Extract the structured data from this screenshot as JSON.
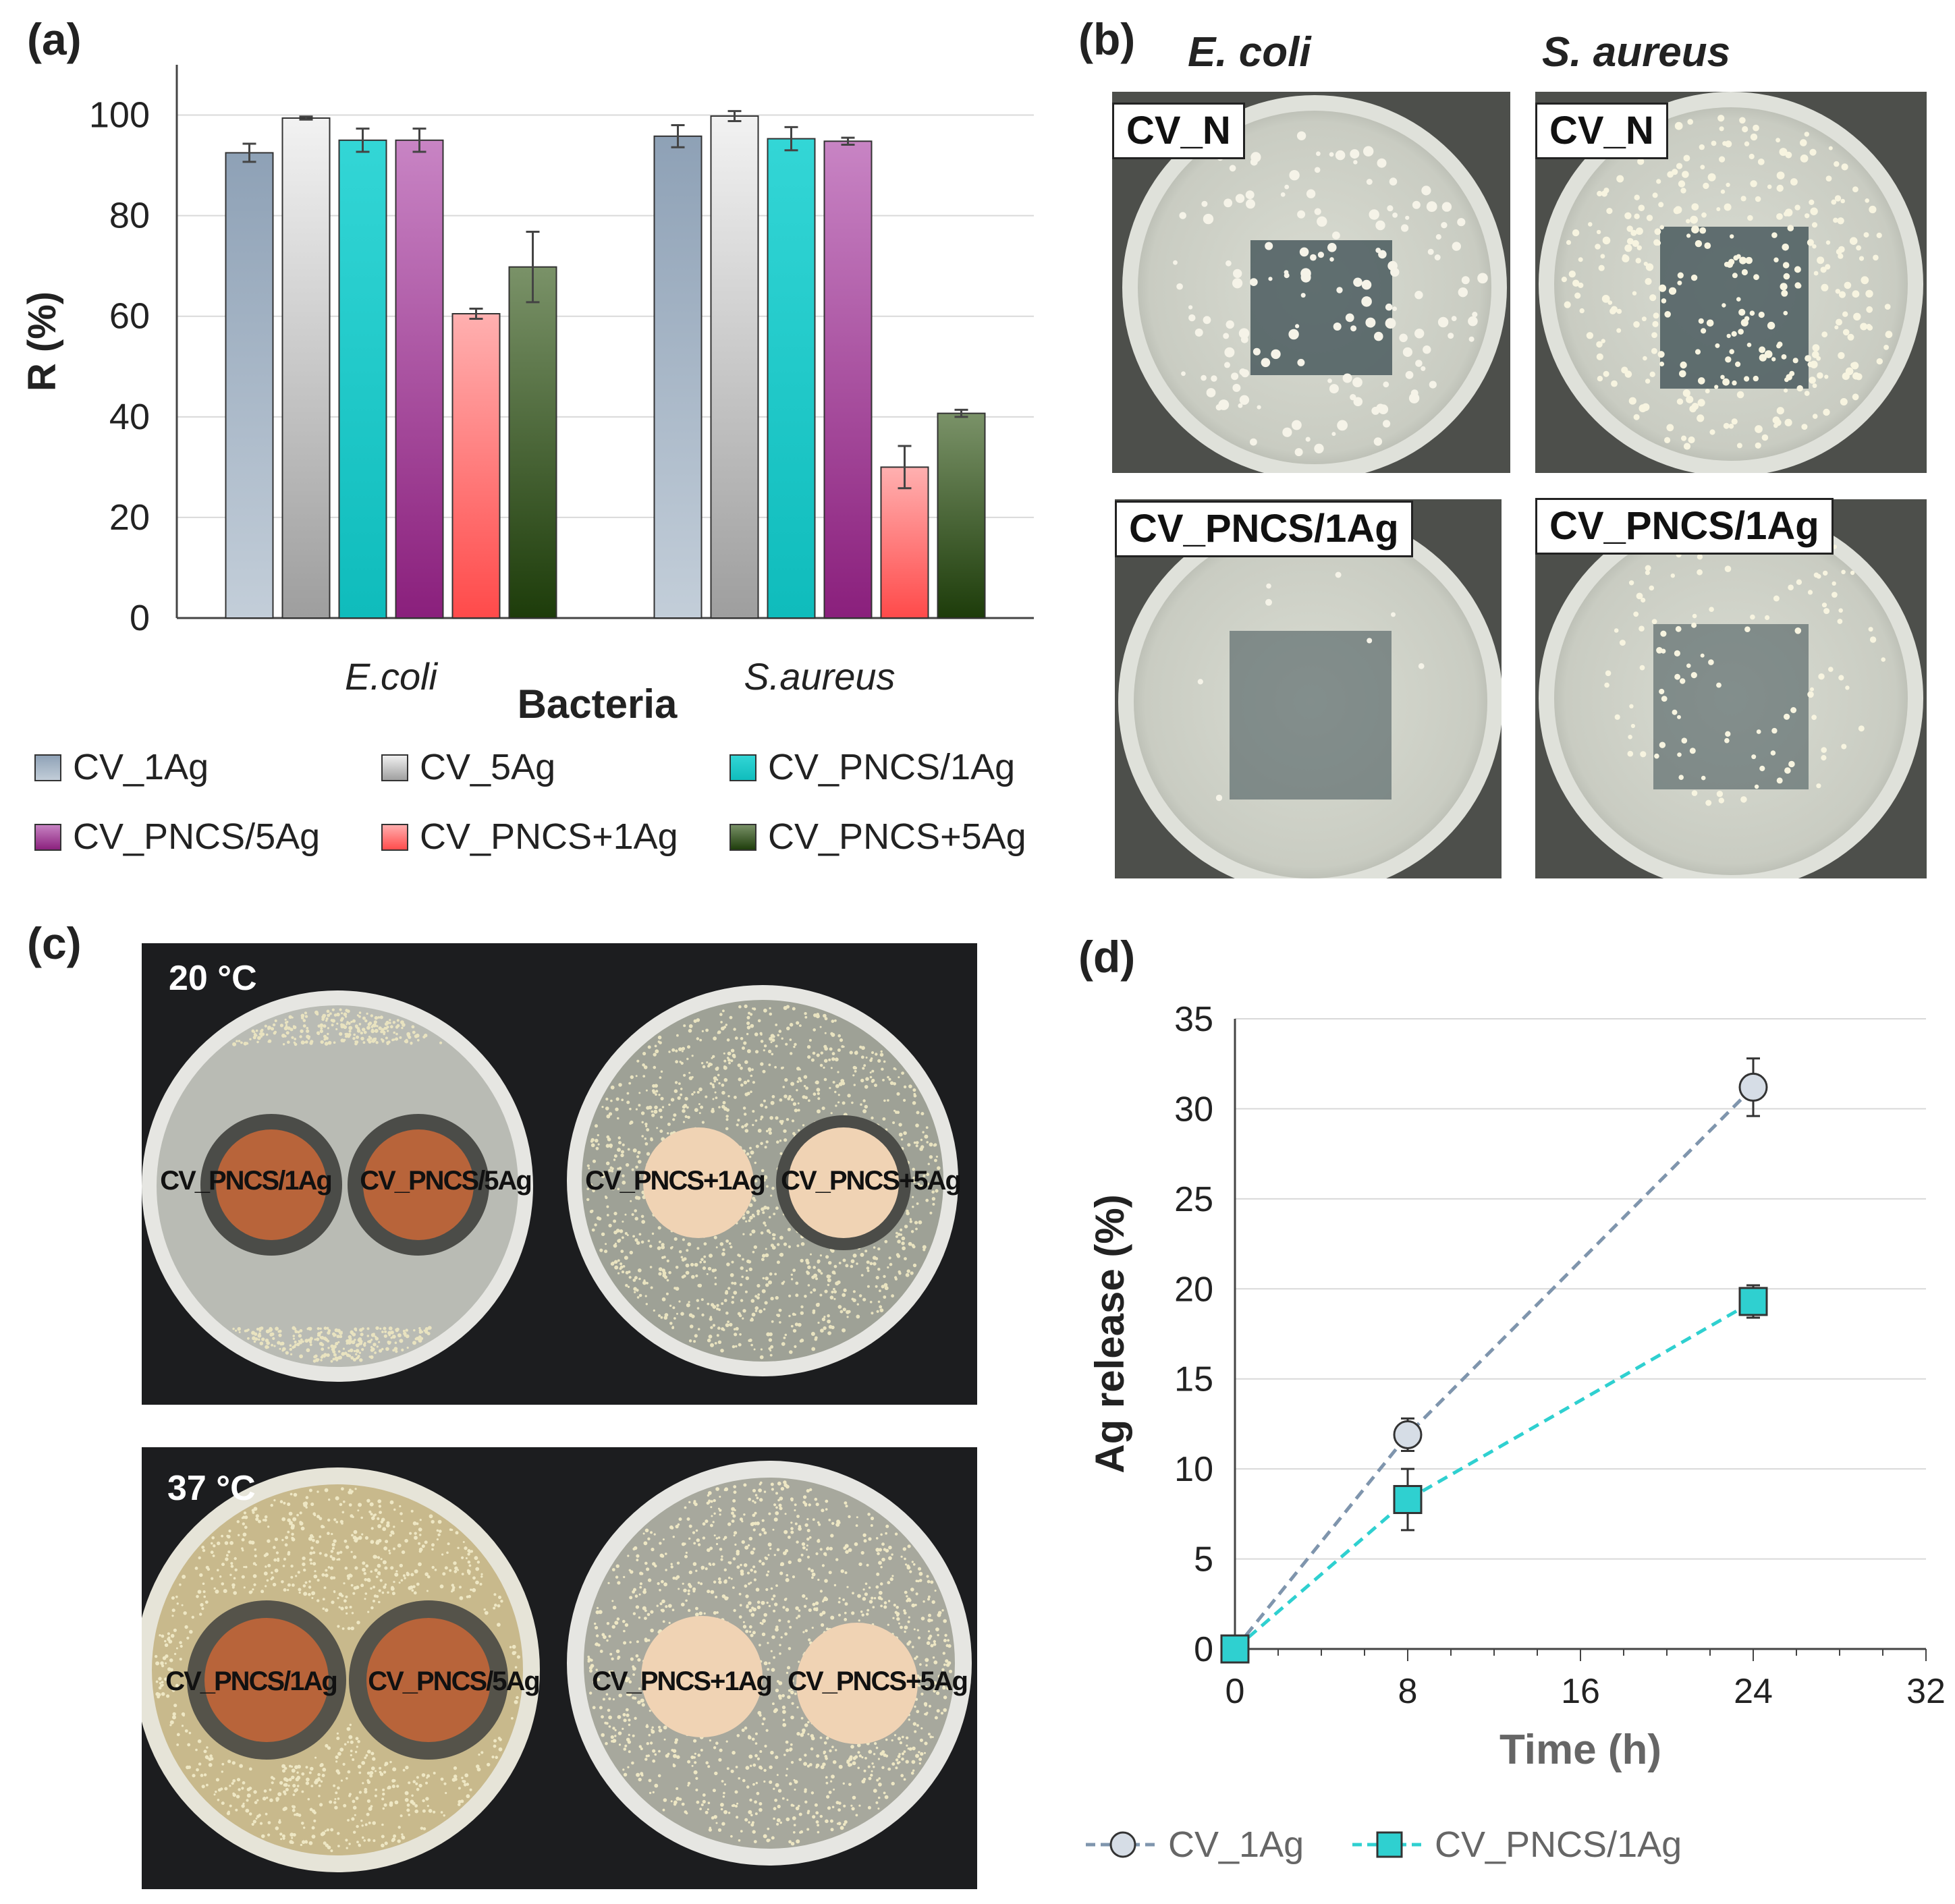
{
  "panels": {
    "a": "(a)",
    "b": "(b)",
    "c": "(c)",
    "d": "(d)"
  },
  "chart_data": [
    {
      "type": "bar",
      "panel": "(a)",
      "xlabel": "Bacteria",
      "ylabel": "R (%)",
      "ylim": [
        0,
        110
      ],
      "yticks": [
        0,
        20,
        40,
        60,
        80,
        100
      ],
      "categories": [
        "E.coli",
        "S.aureus"
      ],
      "series": [
        {
          "name": "CV_1Ag",
          "values": [
            92.5,
            95.8
          ],
          "errors": [
            1.8,
            2.2
          ],
          "color_top": "#8ea1b6",
          "color_bottom": "#c3ced9"
        },
        {
          "name": "CV_5Ag",
          "values": [
            99.4,
            99.8
          ],
          "errors": [
            0.3,
            1.0
          ],
          "color_top": "#f2f2f2",
          "color_bottom": "#9e9e9e"
        },
        {
          "name": "CV_PNCS/1Ag",
          "values": [
            95.0,
            95.3
          ],
          "errors": [
            2.3,
            2.3
          ],
          "color_top": "#33d6d6",
          "color_bottom": "#0fbcbc"
        },
        {
          "name": "CV_PNCS/5Ag",
          "values": [
            95.0,
            94.8
          ],
          "errors": [
            2.3,
            0.7
          ],
          "color_top": "#c884c4",
          "color_bottom": "#8a1f7c"
        },
        {
          "name": "CV_PNCS+1Ag",
          "values": [
            60.5,
            30.0
          ],
          "errors": [
            1.0,
            4.2
          ],
          "color_top": "#ffb0b0",
          "color_bottom": "#ff4a4a"
        },
        {
          "name": "CV_PNCS+5Ag",
          "values": [
            69.8,
            40.7
          ],
          "errors": [
            7.0,
            0.7
          ],
          "color_top": "#7a9268",
          "color_bottom": "#1d3c0a"
        }
      ],
      "legend": "bottom"
    },
    {
      "type": "line",
      "panel": "(d)",
      "xlabel": "Time (h)",
      "ylabel": "Ag release (%)",
      "xlim": [
        0,
        32
      ],
      "ylim": [
        0,
        35
      ],
      "xticks": [
        0,
        8,
        16,
        24,
        32
      ],
      "yticks": [
        0,
        5,
        10,
        15,
        20,
        25,
        30,
        35
      ],
      "series": [
        {
          "name": "CV_1Ag",
          "x": [
            0,
            8,
            24
          ],
          "y": [
            0,
            11.9,
            31.2
          ],
          "errors": [
            0,
            0.9,
            1.6
          ],
          "color": "#7f95ad",
          "marker": "circle"
        },
        {
          "name": "CV_PNCS/1Ag",
          "x": [
            0,
            8,
            24
          ],
          "y": [
            0,
            8.3,
            19.3
          ],
          "errors": [
            0,
            1.7,
            0.9
          ],
          "color": "#2fd0d0",
          "marker": "square"
        }
      ],
      "legend": "bottom"
    }
  ],
  "panel_b": {
    "species": [
      "E. coli",
      "S. aureus"
    ],
    "labels": [
      "CV_N",
      "CV_N",
      "CV_PNCS/1Ag",
      "CV_PNCS/1Ag"
    ]
  },
  "panel_c": {
    "temps": [
      "20 °C",
      "37 °C"
    ],
    "discs": [
      "CV_PNCS/1Ag",
      "CV_PNCS/5Ag",
      "CV_PNCS+1Ag",
      "CV_PNCS+5Ag"
    ]
  }
}
